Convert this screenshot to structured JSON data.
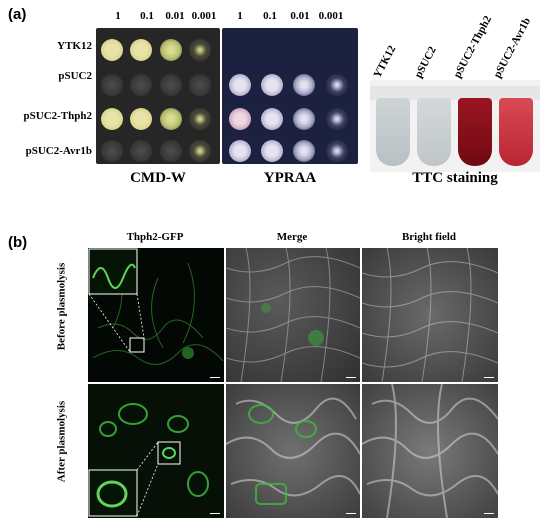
{
  "panel_a": {
    "label": "(a)",
    "dilutions": [
      "1",
      "0.1",
      "0.01",
      "0.001",
      "1",
      "0.1",
      "0.01",
      "0.001"
    ],
    "strains": [
      "YTK12",
      "pSUC2",
      "pSUC2-Thph2",
      "pSUC2-Avr1b"
    ],
    "plates": [
      {
        "caption": "CMD-W"
      },
      {
        "caption": "YPRAA"
      }
    ],
    "tubes": {
      "labels": [
        "YTK12",
        "pSUC2",
        "pSUC2-Thph2",
        "pSUC2-Avr1b"
      ],
      "caption": "TTC staining"
    }
  },
  "panel_b": {
    "label": "(b)",
    "columns": [
      "Thph2-GFP",
      "Merge",
      "Bright field"
    ],
    "rows": [
      "Before plasmolysis",
      "After plasmolysis"
    ]
  }
}
